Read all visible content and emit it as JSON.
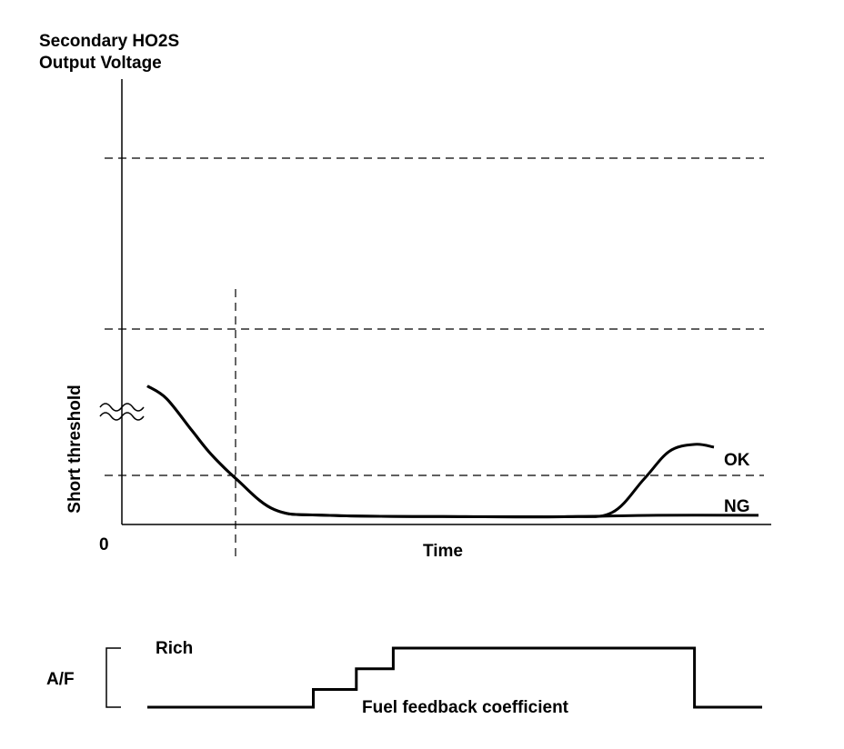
{
  "chart_data": [
    {
      "type": "line",
      "title_lines": [
        "Secondary HO2S",
        "Output Voltage"
      ],
      "xlabel": "Time",
      "ylabel": "Short threshold",
      "origin_label": "0",
      "grid": false,
      "series": [
        {
          "name": "OK",
          "points": [
            [
              0.04,
              0.97
            ],
            [
              0.07,
              0.88
            ],
            [
              0.11,
              0.65
            ],
            [
              0.14,
              0.48
            ],
            [
              0.18,
              0.3
            ],
            [
              0.24,
              0.08
            ],
            [
              0.32,
              0.04
            ],
            [
              0.54,
              0.03
            ],
            [
              0.7,
              0.03
            ],
            [
              0.77,
              0.06
            ],
            [
              0.82,
              0.3
            ],
            [
              0.86,
              0.5
            ],
            [
              0.9,
              0.55
            ],
            [
              0.93,
              0.53
            ]
          ]
        },
        {
          "name": "NG",
          "points": [
            [
              0.04,
              0.97
            ],
            [
              0.07,
              0.88
            ],
            [
              0.11,
              0.65
            ],
            [
              0.14,
              0.48
            ],
            [
              0.18,
              0.3
            ],
            [
              0.24,
              0.08
            ],
            [
              0.32,
              0.04
            ],
            [
              0.54,
              0.03
            ],
            [
              0.7,
              0.03
            ],
            [
              0.84,
              0.04
            ],
            [
              1.0,
              0.04
            ]
          ]
        }
      ]
    },
    {
      "type": "line",
      "series_label": "Fuel feedback coefficient",
      "ylabel": "A/F",
      "level_label": "Rich",
      "series": [
        {
          "name": "Fuel feedback coefficient",
          "points": [
            [
              0.0,
              0.0
            ],
            [
              0.27,
              0.0
            ],
            [
              0.27,
              0.3
            ],
            [
              0.34,
              0.3
            ],
            [
              0.34,
              0.65
            ],
            [
              0.4,
              0.65
            ],
            [
              0.4,
              1.0
            ],
            [
              0.89,
              1.0
            ],
            [
              0.89,
              0.0
            ],
            [
              1.0,
              0.0
            ]
          ]
        }
      ]
    }
  ]
}
